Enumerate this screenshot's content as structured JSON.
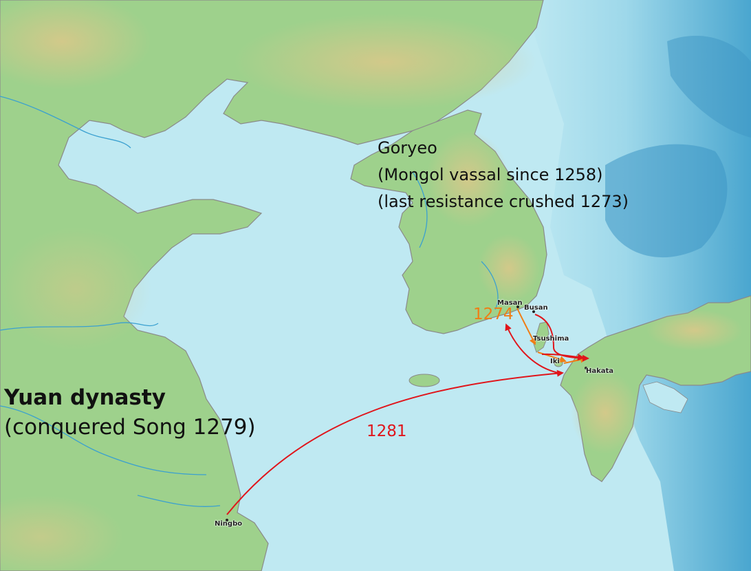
{
  "map": {
    "regions": {
      "yuan_name": "Yuan dynasty",
      "yuan_note": "(conquered Song 1279)",
      "goryeo_name": "Goryeo",
      "goryeo_note1": "(Mongol vassal since 1258)",
      "goryeo_note2": "(last resistance crushed 1273)"
    },
    "places": {
      "masan": "Masan",
      "busan": "Busan",
      "tsushima": "Tsushima",
      "iki": "Iki",
      "hakata": "Hakata",
      "ningbo": "Ningbo"
    },
    "invasions": [
      {
        "year": "1274",
        "color": "#f07d14"
      },
      {
        "year": "1281",
        "color": "#e0151b"
      }
    ],
    "colors": {
      "sea_shallow": "#bfe9f2",
      "sea_deep": "#5fb3d6",
      "land": "#9ed18c",
      "highland": "#cfc684",
      "coast": "#8a8a8a",
      "river": "#3aa0d0"
    }
  }
}
